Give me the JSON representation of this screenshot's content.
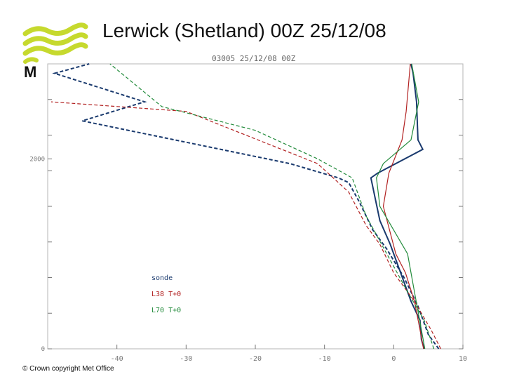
{
  "slide": {
    "title": "Lerwick (Shetland) 00Z 25/12/08",
    "copyright": "© Crown copyright   Met Office",
    "logo_letter": "M"
  },
  "colors": {
    "sonde": "#1a3a6e",
    "l38": "#b22222",
    "l70": "#228b3b",
    "logo": "#c6d92e"
  },
  "chart_data": {
    "type": "line",
    "title": "03005 25/12/08 00Z",
    "xlabel": "",
    "ylabel": "",
    "xlim": [
      -50,
      10
    ],
    "ylim": [
      0,
      3000
    ],
    "x_ticks": [
      "-40",
      "-30",
      "-20",
      "-10",
      "0",
      "10"
    ],
    "y_ticks": [
      "0",
      "2000"
    ],
    "legend_position": "lower-left",
    "series": [
      {
        "name": "sonde",
        "color_key": "sonde",
        "temperature": [
          [
            4.4,
            0
          ],
          [
            4.0,
            100
          ],
          [
            3.8,
            300
          ],
          [
            2.5,
            500
          ],
          [
            1.0,
            800
          ],
          [
            -0.5,
            1100
          ],
          [
            -2.0,
            1350
          ],
          [
            -3.3,
            1800
          ],
          [
            -2.3,
            1850
          ],
          [
            4.2,
            2100
          ],
          [
            3.5,
            2200
          ],
          [
            3.3,
            2600
          ],
          [
            2.8,
            2900
          ],
          [
            2.5,
            3000
          ]
        ],
        "dewpoint": [
          [
            6.5,
            0
          ],
          [
            5.0,
            150
          ],
          [
            3.5,
            450
          ],
          [
            1.5,
            750
          ],
          [
            -1.0,
            1050
          ],
          [
            -3.0,
            1250
          ],
          [
            -5.0,
            1550
          ],
          [
            -6.5,
            1750
          ],
          [
            -8.0,
            1800
          ],
          [
            -15.0,
            1950
          ],
          [
            -45.0,
            2400
          ],
          [
            -36.0,
            2600
          ],
          [
            -49.0,
            2900
          ],
          [
            -44.0,
            3000
          ]
        ]
      },
      {
        "name": "L38 T+0",
        "color_key": "l38",
        "temperature": [
          [
            4.3,
            0
          ],
          [
            3.8,
            200
          ],
          [
            3.0,
            500
          ],
          [
            1.7,
            800
          ],
          [
            0.3,
            1000
          ],
          [
            -1.5,
            1500
          ],
          [
            -0.7,
            1850
          ],
          [
            1.2,
            2200
          ],
          [
            1.8,
            2500
          ],
          [
            2.4,
            3000
          ]
        ],
        "dewpoint": [
          [
            6.8,
            0
          ],
          [
            5.4,
            200
          ],
          [
            3.0,
            500
          ],
          [
            0.0,
            800
          ],
          [
            -2.0,
            1100
          ],
          [
            -4.0,
            1300
          ],
          [
            -6.5,
            1650
          ],
          [
            -11.0,
            1950
          ],
          [
            -30.0,
            2500
          ],
          [
            -49.5,
            2600
          ]
        ]
      },
      {
        "name": "L70 T+0",
        "color_key": "l70",
        "temperature": [
          [
            4.5,
            0
          ],
          [
            4.0,
            200
          ],
          [
            3.0,
            600
          ],
          [
            2.0,
            1000
          ],
          [
            -2.0,
            1500
          ],
          [
            -2.5,
            1800
          ],
          [
            -1.5,
            1950
          ],
          [
            2.5,
            2200
          ],
          [
            3.6,
            2600
          ],
          [
            2.6,
            3000
          ]
        ],
        "dewpoint": [
          [
            5.8,
            0
          ],
          [
            4.4,
            300
          ],
          [
            2.0,
            600
          ],
          [
            -1.0,
            1000
          ],
          [
            -4.0,
            1400
          ],
          [
            -6.0,
            1800
          ],
          [
            -11.0,
            2000
          ],
          [
            -20.0,
            2300
          ],
          [
            -33.5,
            2550
          ],
          [
            -41.0,
            3000
          ]
        ]
      }
    ]
  }
}
